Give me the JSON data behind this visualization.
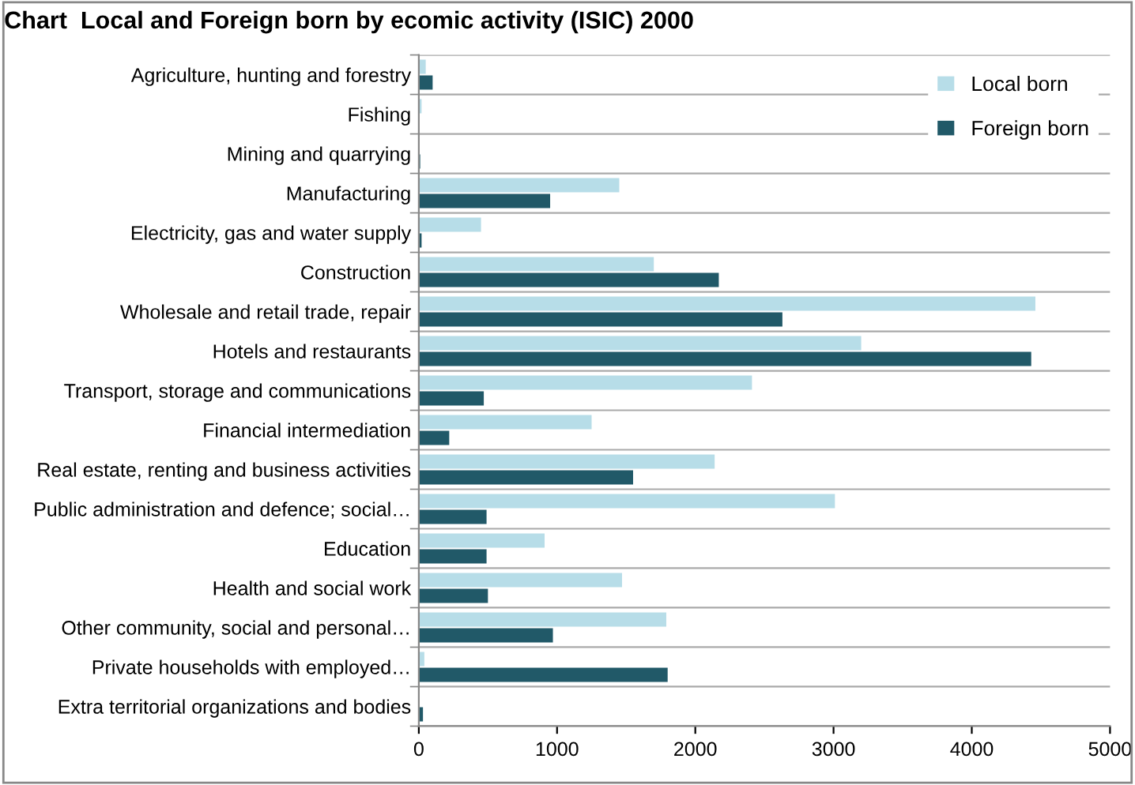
{
  "chart_data": {
    "type": "bar",
    "orientation": "horizontal",
    "title": "Chart  Local and Foreign born by ecomic activity (ISIC) 2000",
    "categories": [
      "Agriculture, hunting and forestry",
      "Fishing",
      "Mining and quarrying",
      "Manufacturing",
      "Electricity, gas and water supply",
      "Construction",
      "Wholesale and retail trade, repair",
      "Hotels and restaurants",
      "Transport, storage and communications",
      "Financial intermediation",
      "Real estate, renting and business activities",
      "Public administration and defence; social…",
      "Education",
      "Health and social work",
      "Other community, social and personal…",
      "Private households with employed…",
      "Extra territorial organizations and bodies"
    ],
    "series": [
      {
        "name": "Local born",
        "color": "#b7dde8",
        "values": [
          50,
          20,
          0,
          1450,
          450,
          1700,
          4460,
          3200,
          2410,
          1250,
          2140,
          3010,
          910,
          1470,
          1790,
          40,
          0
        ]
      },
      {
        "name": "Foreign born",
        "color": "#215968",
        "values": [
          100,
          0,
          10,
          950,
          20,
          2170,
          2630,
          4430,
          470,
          220,
          1550,
          490,
          490,
          500,
          970,
          1800,
          30
        ]
      }
    ],
    "xlim": [
      0,
      5000
    ],
    "xticks": [
      0,
      1000,
      2000,
      3000,
      4000,
      5000
    ],
    "grid": "y",
    "legend": "top right"
  }
}
